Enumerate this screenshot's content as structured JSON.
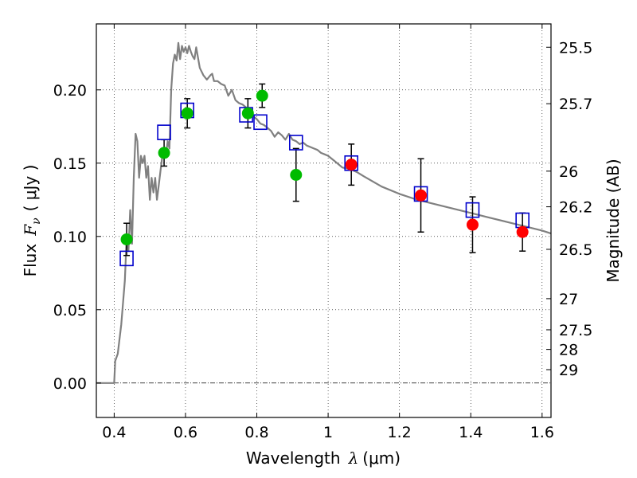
{
  "chart_data": {
    "type": "scatter",
    "xlabel": {
      "prefix": "Wavelength",
      "sym": "λ",
      "unit": "(μm)"
    },
    "ylabel": {
      "prefix": "Flux",
      "sym": "F",
      "sub": "ν",
      "unit": "( μJy )"
    },
    "right_label": "Magnitude (AB)",
    "xlim": [
      0.35,
      1.625
    ],
    "ylim": [
      -0.0235,
      0.245
    ],
    "grid": true,
    "x_ticks": [
      {
        "v": 0.4,
        "label": "0.4"
      },
      {
        "v": 0.6,
        "label": "0.6"
      },
      {
        "v": 0.8,
        "label": "0.8"
      },
      {
        "v": 1.0,
        "label": "1"
      },
      {
        "v": 1.2,
        "label": "1.2"
      },
      {
        "v": 1.4,
        "label": "1.4"
      },
      {
        "v": 1.6,
        "label": "1.6"
      }
    ],
    "y_ticks": [
      {
        "v": 0.0,
        "label": "0.00"
      },
      {
        "v": 0.05,
        "label": "0.05"
      },
      {
        "v": 0.1,
        "label": "0.10"
      },
      {
        "v": 0.15,
        "label": "0.15"
      },
      {
        "v": 0.2,
        "label": "0.20"
      }
    ],
    "mag_ticks": [
      {
        "v": 25.5,
        "label": "25.5"
      },
      {
        "v": 25.7,
        "label": "25.7"
      },
      {
        "v": 26,
        "label": "26"
      },
      {
        "v": 26.2,
        "label": "26.2"
      },
      {
        "v": 26.5,
        "label": "26.5"
      },
      {
        "v": 27,
        "label": "27"
      },
      {
        "v": 27.5,
        "label": "27.5"
      },
      {
        "v": 28,
        "label": "28"
      },
      {
        "v": 29,
        "label": "29"
      }
    ],
    "colors": {
      "model": "#808080",
      "green": "#00bb00",
      "red": "#ff0000",
      "box": "#0000cc",
      "errorbar": "#000000",
      "zero_line": "#000000"
    },
    "series": [
      {
        "name": "Model SED",
        "kind": "line",
        "x": [
          0.35,
          0.4,
          0.403,
          0.41,
          0.42,
          0.43,
          0.435,
          0.44,
          0.445,
          0.45,
          0.455,
          0.46,
          0.465,
          0.47,
          0.475,
          0.48,
          0.485,
          0.49,
          0.495,
          0.5,
          0.505,
          0.51,
          0.515,
          0.52,
          0.525,
          0.53,
          0.535,
          0.54,
          0.545,
          0.55,
          0.555,
          0.56,
          0.565,
          0.57,
          0.575,
          0.58,
          0.585,
          0.59,
          0.595,
          0.6,
          0.605,
          0.61,
          0.615,
          0.62,
          0.625,
          0.63,
          0.64,
          0.65,
          0.66,
          0.67,
          0.675,
          0.68,
          0.69,
          0.7,
          0.71,
          0.72,
          0.73,
          0.74,
          0.75,
          0.76,
          0.77,
          0.78,
          0.79,
          0.8,
          0.81,
          0.82,
          0.83,
          0.84,
          0.85,
          0.86,
          0.87,
          0.88,
          0.89,
          0.9,
          0.91,
          0.92,
          0.93,
          0.94,
          0.95,
          0.96,
          0.97,
          0.98,
          0.99,
          1.0,
          1.02,
          1.04,
          1.06,
          1.08,
          1.1,
          1.15,
          1.2,
          1.25,
          1.3,
          1.35,
          1.4,
          1.45,
          1.5,
          1.55,
          1.6,
          1.625
        ],
        "y": [
          0.0,
          0.0,
          0.015,
          0.02,
          0.04,
          0.07,
          0.1,
          0.09,
          0.118,
          0.095,
          0.14,
          0.17,
          0.165,
          0.14,
          0.155,
          0.15,
          0.155,
          0.14,
          0.148,
          0.125,
          0.14,
          0.13,
          0.14,
          0.125,
          0.135,
          0.145,
          0.155,
          0.16,
          0.155,
          0.165,
          0.16,
          0.2,
          0.218,
          0.224,
          0.22,
          0.232,
          0.221,
          0.23,
          0.226,
          0.229,
          0.225,
          0.23,
          0.226,
          0.223,
          0.221,
          0.229,
          0.215,
          0.21,
          0.207,
          0.21,
          0.211,
          0.206,
          0.206,
          0.204,
          0.203,
          0.196,
          0.2,
          0.193,
          0.191,
          0.19,
          0.188,
          0.184,
          0.182,
          0.18,
          0.177,
          0.176,
          0.174,
          0.172,
          0.168,
          0.171,
          0.169,
          0.166,
          0.17,
          0.166,
          0.165,
          0.163,
          0.164,
          0.162,
          0.161,
          0.16,
          0.159,
          0.157,
          0.156,
          0.155,
          0.151,
          0.147,
          0.146,
          0.144,
          0.141,
          0.134,
          0.129,
          0.125,
          0.122,
          0.119,
          0.116,
          0.113,
          0.11,
          0.107,
          0.104,
          0.102
        ]
      },
      {
        "name": "Model broadband",
        "kind": "box",
        "x": [
          0.435,
          0.54,
          0.605,
          0.77,
          0.81,
          0.91,
          1.065,
          1.26,
          1.405,
          1.545
        ],
        "y": [
          0.085,
          0.171,
          0.186,
          0.183,
          0.178,
          0.164,
          0.15,
          0.129,
          0.118,
          0.111
        ]
      },
      {
        "name": "Observed (green)",
        "kind": "point",
        "color": "green",
        "x": [
          0.435,
          0.54,
          0.605,
          0.775,
          0.815,
          0.91
        ],
        "y": [
          0.098,
          0.157,
          0.184,
          0.184,
          0.196,
          0.142
        ],
        "err": [
          0.011,
          0.009,
          0.01,
          0.01,
          0.008,
          0.018
        ]
      },
      {
        "name": "Observed (red)",
        "kind": "point",
        "color": "red",
        "x": [
          1.065,
          1.26,
          1.405,
          1.545
        ],
        "y": [
          0.149,
          0.128,
          0.108,
          0.103
        ],
        "err": [
          0.014,
          0.025,
          0.019,
          0.013
        ]
      }
    ]
  }
}
